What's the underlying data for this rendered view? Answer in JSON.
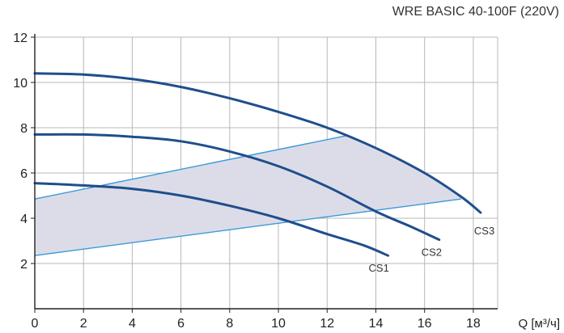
{
  "chart_data": {
    "type": "line",
    "title": "WRE BASIC 40-100F (220V)",
    "xlabel": "Q [м³/ч]",
    "ylabel": "",
    "xlim": [
      0,
      19
    ],
    "ylim": [
      0,
      12
    ],
    "xticks": [
      0,
      2,
      4,
      6,
      8,
      10,
      12,
      14,
      16,
      18
    ],
    "yticks": [
      2,
      4,
      6,
      8,
      10,
      12
    ],
    "grid": true,
    "series": [
      {
        "name": "CS1",
        "x": [
          0,
          2,
          4,
          6,
          8,
          10,
          12,
          13.5,
          14.5
        ],
        "y": [
          5.55,
          5.45,
          5.3,
          5.0,
          4.55,
          4.0,
          3.3,
          2.8,
          2.35
        ]
      },
      {
        "name": "CS2",
        "x": [
          0,
          2,
          4,
          6,
          8,
          10,
          12,
          14,
          15.5,
          16.6
        ],
        "y": [
          7.7,
          7.7,
          7.6,
          7.4,
          6.95,
          6.3,
          5.4,
          4.3,
          3.6,
          3.05
        ]
      },
      {
        "name": "CS3",
        "x": [
          0,
          2,
          4,
          6,
          8,
          10,
          12,
          14,
          16,
          17.5,
          18.3
        ],
        "y": [
          10.4,
          10.35,
          10.15,
          9.8,
          9.3,
          8.7,
          8.0,
          7.1,
          6.0,
          4.95,
          4.25
        ]
      }
    ],
    "control_region": {
      "upper_line": {
        "x": [
          0,
          12.8
        ],
        "y": [
          4.85,
          7.65
        ]
      },
      "lower_line": {
        "x": [
          0,
          17.5
        ],
        "y": [
          2.35,
          4.85
        ]
      },
      "fill_color": "#dcdce8",
      "line_color": "#3a9ad9"
    },
    "curve_color": "#1f4e8c",
    "grid_color": "#b8b8b8"
  }
}
